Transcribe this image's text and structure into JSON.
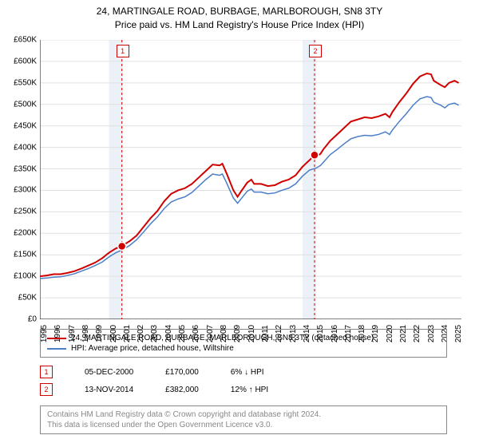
{
  "title_line1": "24, MARTINGALE ROAD, BURBAGE, MARLBOROUGH, SN8 3TY",
  "title_line2": "Price paid vs. HM Land Registry's House Price Index (HPI)",
  "chart": {
    "type": "line",
    "background_color": "#ffffff",
    "plot_bg": "#ffffff",
    "grid_color": "#e0e0e0",
    "axis_color": "#000000",
    "ylim": [
      0,
      650000
    ],
    "ytick_step": 50000,
    "ytick_labels": [
      "£0",
      "£50K",
      "£100K",
      "£150K",
      "£200K",
      "£250K",
      "£300K",
      "£350K",
      "£400K",
      "£450K",
      "£500K",
      "£550K",
      "£600K",
      "£650K"
    ],
    "x_years": [
      1995,
      1996,
      1997,
      1998,
      1999,
      2000,
      2001,
      2002,
      2003,
      2004,
      2005,
      2006,
      2007,
      2008,
      2009,
      2010,
      2011,
      2012,
      2013,
      2014,
      2015,
      2016,
      2017,
      2018,
      2019,
      2020,
      2021,
      2022,
      2023,
      2024,
      2025
    ],
    "x_data_max": 2025.5,
    "series": [
      {
        "name": "24, MARTINGALE ROAD, BURBAGE, MARLBOROUGH, SN8 3TY (detached house)",
        "color": "#d00000",
        "width": 2,
        "data": [
          [
            1995,
            100000
          ],
          [
            1995.5,
            102000
          ],
          [
            1996,
            105000
          ],
          [
            1996.5,
            105000
          ],
          [
            1997,
            108000
          ],
          [
            1997.5,
            112000
          ],
          [
            1998,
            118000
          ],
          [
            1998.5,
            125000
          ],
          [
            1999,
            132000
          ],
          [
            1999.5,
            142000
          ],
          [
            2000,
            155000
          ],
          [
            2000.5,
            165000
          ],
          [
            2000.93,
            170000
          ],
          [
            2001,
            172000
          ],
          [
            2001.5,
            182000
          ],
          [
            2002,
            195000
          ],
          [
            2002.5,
            215000
          ],
          [
            2003,
            235000
          ],
          [
            2003.5,
            252000
          ],
          [
            2004,
            275000
          ],
          [
            2004.5,
            292000
          ],
          [
            2005,
            300000
          ],
          [
            2005.5,
            305000
          ],
          [
            2006,
            315000
          ],
          [
            2006.5,
            330000
          ],
          [
            2007,
            345000
          ],
          [
            2007.5,
            360000
          ],
          [
            2008,
            358000
          ],
          [
            2008.2,
            362000
          ],
          [
            2008.5,
            340000
          ],
          [
            2009,
            300000
          ],
          [
            2009.3,
            285000
          ],
          [
            2009.5,
            295000
          ],
          [
            2010,
            318000
          ],
          [
            2010.3,
            325000
          ],
          [
            2010.5,
            315000
          ],
          [
            2011,
            315000
          ],
          [
            2011.5,
            310000
          ],
          [
            2012,
            312000
          ],
          [
            2012.5,
            320000
          ],
          [
            2013,
            325000
          ],
          [
            2013.5,
            335000
          ],
          [
            2014,
            355000
          ],
          [
            2014.5,
            370000
          ],
          [
            2014.87,
            382000
          ],
          [
            2015,
            378000
          ],
          [
            2015.3,
            385000
          ],
          [
            2015.5,
            395000
          ],
          [
            2016,
            415000
          ],
          [
            2016.5,
            430000
          ],
          [
            2017,
            445000
          ],
          [
            2017.5,
            460000
          ],
          [
            2018,
            465000
          ],
          [
            2018.5,
            470000
          ],
          [
            2019,
            468000
          ],
          [
            2019.5,
            472000
          ],
          [
            2020,
            478000
          ],
          [
            2020.3,
            470000
          ],
          [
            2020.5,
            482000
          ],
          [
            2021,
            505000
          ],
          [
            2021.5,
            525000
          ],
          [
            2022,
            548000
          ],
          [
            2022.5,
            565000
          ],
          [
            2023,
            572000
          ],
          [
            2023.3,
            570000
          ],
          [
            2023.5,
            555000
          ],
          [
            2024,
            545000
          ],
          [
            2024.3,
            540000
          ],
          [
            2024.6,
            550000
          ],
          [
            2025,
            555000
          ],
          [
            2025.3,
            550000
          ]
        ]
      },
      {
        "name": "HPI: Average price, detached house, Wiltshire",
        "color": "#4a7ec8",
        "width": 1.5,
        "data": [
          [
            1995,
            95000
          ],
          [
            1995.5,
            96000
          ],
          [
            1996,
            98000
          ],
          [
            1996.5,
            99000
          ],
          [
            1997,
            102000
          ],
          [
            1997.5,
            106000
          ],
          [
            1998,
            112000
          ],
          [
            1998.5,
            118000
          ],
          [
            1999,
            125000
          ],
          [
            1999.5,
            133000
          ],
          [
            2000,
            145000
          ],
          [
            2000.5,
            155000
          ],
          [
            2001,
            162000
          ],
          [
            2001.5,
            172000
          ],
          [
            2002,
            185000
          ],
          [
            2002.5,
            203000
          ],
          [
            2003,
            222000
          ],
          [
            2003.5,
            238000
          ],
          [
            2004,
            258000
          ],
          [
            2004.5,
            273000
          ],
          [
            2005,
            280000
          ],
          [
            2005.5,
            285000
          ],
          [
            2006,
            295000
          ],
          [
            2006.5,
            310000
          ],
          [
            2007,
            325000
          ],
          [
            2007.5,
            338000
          ],
          [
            2008,
            335000
          ],
          [
            2008.2,
            338000
          ],
          [
            2008.5,
            318000
          ],
          [
            2009,
            282000
          ],
          [
            2009.3,
            270000
          ],
          [
            2009.5,
            278000
          ],
          [
            2010,
            298000
          ],
          [
            2010.3,
            303000
          ],
          [
            2010.5,
            296000
          ],
          [
            2011,
            296000
          ],
          [
            2011.5,
            292000
          ],
          [
            2012,
            294000
          ],
          [
            2012.5,
            300000
          ],
          [
            2013,
            305000
          ],
          [
            2013.5,
            315000
          ],
          [
            2014,
            333000
          ],
          [
            2014.5,
            347000
          ],
          [
            2015,
            352000
          ],
          [
            2015.3,
            358000
          ],
          [
            2015.5,
            365000
          ],
          [
            2016,
            383000
          ],
          [
            2016.5,
            395000
          ],
          [
            2017,
            408000
          ],
          [
            2017.5,
            420000
          ],
          [
            2018,
            425000
          ],
          [
            2018.5,
            428000
          ],
          [
            2019,
            427000
          ],
          [
            2019.5,
            430000
          ],
          [
            2020,
            436000
          ],
          [
            2020.3,
            430000
          ],
          [
            2020.5,
            440000
          ],
          [
            2021,
            460000
          ],
          [
            2021.5,
            478000
          ],
          [
            2022,
            498000
          ],
          [
            2022.5,
            513000
          ],
          [
            2023,
            518000
          ],
          [
            2023.3,
            516000
          ],
          [
            2023.5,
            505000
          ],
          [
            2024,
            498000
          ],
          [
            2024.3,
            492000
          ],
          [
            2024.6,
            500000
          ],
          [
            2025,
            503000
          ],
          [
            2025.3,
            498000
          ]
        ]
      }
    ],
    "markers": [
      {
        "label": "1",
        "x": 2000.93,
        "y": 170000,
        "date": "05-DEC-2000",
        "price": "£170,000",
        "diff": "6% ↓ HPI",
        "color": "#d00000",
        "band_start": 2000,
        "band_end": 2001,
        "band_color": "rgba(200,215,235,0.35)",
        "line_color": "#d00000"
      },
      {
        "label": "2",
        "x": 2014.87,
        "y": 382000,
        "date": "13-NOV-2014",
        "price": "£382,000",
        "diff": "12% ↑ HPI",
        "color": "#d00000",
        "band_start": 2014,
        "band_end": 2015,
        "band_color": "rgba(200,215,235,0.35)",
        "line_color": "#d00000"
      }
    ]
  },
  "legend_items": [
    {
      "color": "#d00000",
      "label": "24, MARTINGALE ROAD, BURBAGE, MARLBOROUGH, SN8 3TY (detached house)"
    },
    {
      "color": "#4a7ec8",
      "label": "HPI: Average price, detached house, Wiltshire"
    }
  ],
  "footer_line1": "Contains HM Land Registry data © Crown copyright and database right 2024.",
  "footer_line2": "This data is licensed under the Open Government Licence v3.0."
}
